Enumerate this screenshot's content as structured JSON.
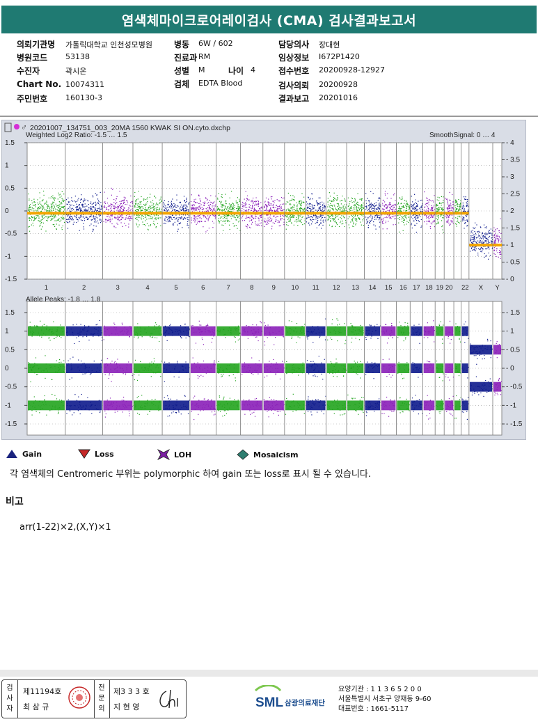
{
  "report": {
    "title": "염색체마이크로어레이검사 (CMA) 검사결과보고서"
  },
  "info": {
    "institution_label": "의뢰기관명",
    "institution": "가톨릭대학교 인천성모병원",
    "ward_label": "병동",
    "ward": "6W / 602",
    "doctor_label": "담당의사",
    "doctor": "장대현",
    "hospital_code_label": "병원코드",
    "hospital_code": "53138",
    "dept_label": "진료과",
    "dept": "RM",
    "clinical_label": "임상정보",
    "clinical": "I672P1420",
    "patient_label": "수진자",
    "patient": "곽시온",
    "sex_label": "성별",
    "sex": "M",
    "age_label": "나이",
    "age": "4",
    "receipt_label": "접수번호",
    "receipt": "20200928-12927",
    "chart_no_label": "Chart No.",
    "chart_no": "10074311",
    "specimen_label": "검체",
    "specimen": "EDTA Blood",
    "request_date_label": "검사의뢰",
    "request_date": "20200928",
    "id_label": "주민번호",
    "id_no": "160130-3",
    "report_date_label": "결과보고",
    "report_date": "20201016"
  },
  "chart_data": [
    {
      "type": "scatter",
      "file": "20201007_134751_003_20MA 1560 KWAK SI ON.cyto.dxchp",
      "title": "Weighted Log2 Ratio: -1.5 … 1.5",
      "right_title": "SmoothSignal: 0 … 4",
      "ylim": [
        -1.5,
        1.5
      ],
      "y_ticks": [
        "1.5",
        "1",
        "0.5",
        "0",
        "-0.5",
        "-1",
        "-1.5"
      ],
      "right_ylim": [
        0,
        4
      ],
      "right_ticks": [
        "4",
        "3.5",
        "3",
        "2.5",
        "2",
        "1.5",
        "1",
        "0.5",
        "0"
      ],
      "x_labels": [
        "1",
        "2",
        "3",
        "4",
        "5",
        "6",
        "7",
        "8",
        "9",
        "10",
        "11",
        "12",
        "13",
        "14",
        "15",
        "16",
        "17",
        "18",
        "19",
        "20",
        "22",
        "X",
        "Y"
      ],
      "grid": true
    },
    {
      "type": "scatter",
      "title": "Allele Peaks: -1.8 … 1.8",
      "ylim": [
        -1.8,
        1.8
      ],
      "y_ticks": [
        "1.5",
        "1",
        "0.5",
        "0",
        "-0.5",
        "-1",
        "-1.5"
      ],
      "right_ticks": [
        "1.5",
        "1",
        "0.5",
        "0",
        "-0.5",
        "-1",
        "-1.5"
      ],
      "grid": true
    }
  ],
  "legend": [
    {
      "label": "Gain",
      "color": "#1a237e"
    },
    {
      "label": "Loss",
      "color": "#c62828"
    },
    {
      "label": "LOH",
      "color": "#7b1fa2"
    },
    {
      "label": "Mosaicism",
      "color": "#2e7d6f"
    }
  ],
  "note": "각 염색체의 Centromeric 부위는 polymorphic 하여 gain 또는 loss로 표시 될 수 있습니다.",
  "remarks": {
    "heading": "비고",
    "result": "arr(1-22)×2,(X,Y)×1"
  },
  "signatures": {
    "examiner_label": "검사자",
    "examiner_no": "제11194호",
    "examiner_name": "최 삼 규",
    "specialist_label": "전문의",
    "specialist_no": "제3 3 3 호",
    "specialist_name": "지 현 영"
  },
  "org": {
    "logo": "SML",
    "name": "삼광의료재단",
    "code": "요양기관 : 1 1 3 6 5 2 0 0",
    "address": "서울특별시 서초구 양재동 9-60",
    "phone": "대표번호 : 1661-5117"
  },
  "colors": {
    "title_bar": "#1f7a72",
    "green": "#22a41e",
    "navy": "#0d1a8c",
    "purple": "#8a1fb8",
    "orange": "#f3a500"
  }
}
